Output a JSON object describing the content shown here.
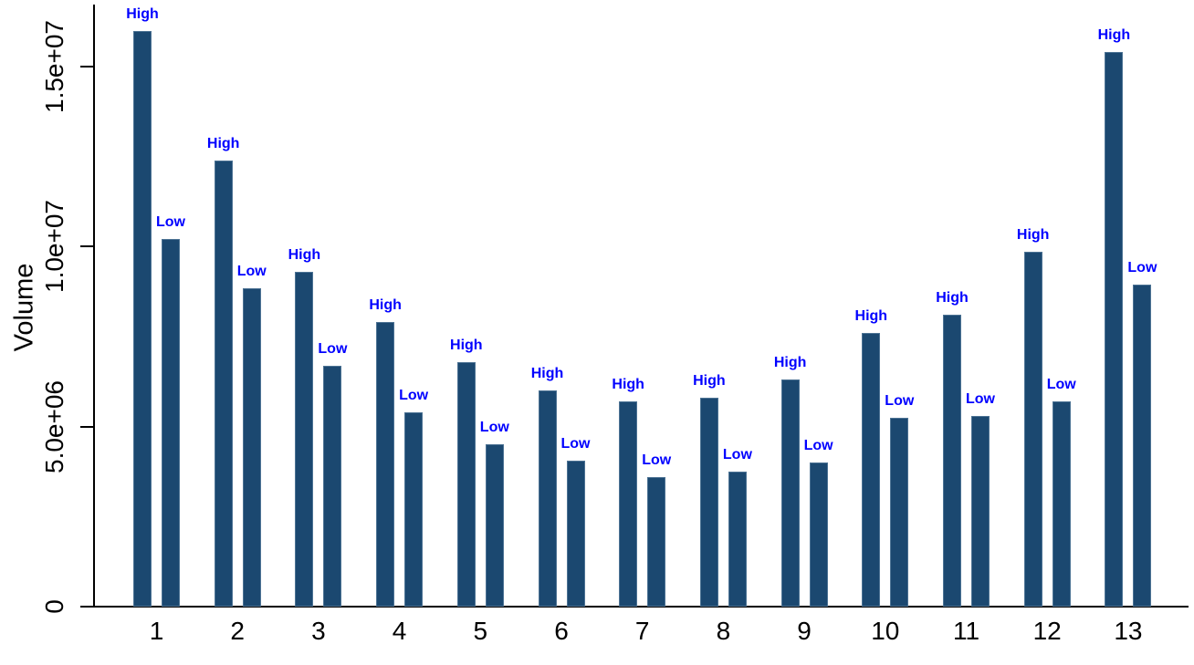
{
  "chart_data": {
    "type": "bar",
    "title": "",
    "xlabel": "",
    "ylabel": "Volume",
    "categories": [
      "1",
      "2",
      "3",
      "4",
      "5",
      "6",
      "7",
      "8",
      "9",
      "10",
      "11",
      "12",
      "13"
    ],
    "series": [
      {
        "name": "High",
        "values": [
          16000000,
          12400000,
          9300000,
          7900000,
          6800000,
          6000000,
          5700000,
          5800000,
          6300000,
          7600000,
          8100000,
          9850000,
          15400000
        ]
      },
      {
        "name": "Low",
        "values": [
          10200000,
          8850000,
          6700000,
          5400000,
          4500000,
          4050000,
          3600000,
          3750000,
          4000000,
          5250000,
          5300000,
          5700000,
          8950000
        ]
      }
    ],
    "yticks": [
      {
        "label": "0",
        "value": 0
      },
      {
        "label": "5.0e+06",
        "value": 5000000
      },
      {
        "label": "1.0e+07",
        "value": 10000000
      },
      {
        "label": "1.5e+07",
        "value": 15000000
      }
    ],
    "ylim": [
      0,
      16700000
    ],
    "grid": false,
    "legend_position": "none",
    "bar_label_style": "series name above each bar",
    "colors": {
      "bar_fill": "#1b4870",
      "bar_border": "#4d7394",
      "bar_label_text": "#0000ff",
      "axis_text": "#000000",
      "background": "#ffffff"
    }
  }
}
